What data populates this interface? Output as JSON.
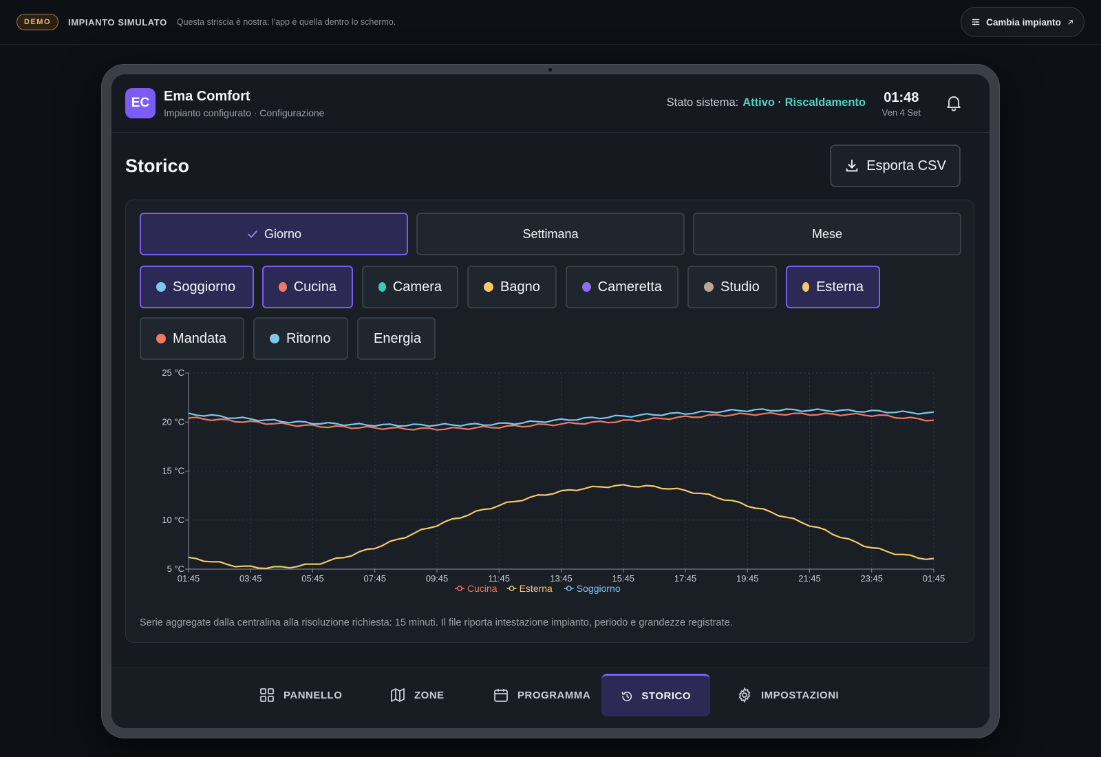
{
  "strip": {
    "badge": "DEMO",
    "title": "IMPIANTO SIMULATO",
    "note": "Questa striscia è nostra: l'app è quella dentro lo schermo.",
    "change_label": "Cambia impianto"
  },
  "header": {
    "logo": "EC",
    "app_name": "Ema Comfort",
    "subtitle": "Impianto configurato · Configurazione",
    "status_label": "Stato sistema:",
    "status_value": "Attivo · Riscaldamento",
    "time": "01:48",
    "date": "Ven 4 Set"
  },
  "page": {
    "title": "Storico",
    "export_label": "Esporta CSV"
  },
  "ranges": [
    {
      "label": "Giorno",
      "active": true
    },
    {
      "label": "Settimana",
      "active": false
    },
    {
      "label": "Mese",
      "active": false
    }
  ],
  "series_chips": [
    {
      "label": "Soggiorno",
      "color": "#7cc8ef",
      "active": true
    },
    {
      "label": "Cucina",
      "color": "#f07a5f",
      "active": true
    },
    {
      "label": "Camera",
      "color": "#3fc9b4",
      "active": false
    },
    {
      "label": "Bagno",
      "color": "#f5c96a",
      "active": false
    },
    {
      "label": "Cameretta",
      "color": "#8c6cf2",
      "active": false
    },
    {
      "label": "Studio",
      "color": "#bba78f",
      "active": false
    },
    {
      "label": "Esterna",
      "color": "#f5c96a",
      "active": true
    },
    {
      "label": "Mandata",
      "color": "#f07a5f",
      "active": false
    },
    {
      "label": "Ritorno",
      "color": "#7cc8ef",
      "active": false
    },
    {
      "label": "Energia",
      "color": "",
      "active": false
    }
  ],
  "chart_data": {
    "type": "line",
    "x": [
      "01:45",
      "03:45",
      "05:45",
      "07:45",
      "09:45",
      "11:45",
      "13:45",
      "15:45",
      "17:45",
      "19:45",
      "21:45",
      "23:45",
      "01:45"
    ],
    "x_ticks": [
      "01:45",
      "03:45",
      "05:45",
      "07:45",
      "09:45",
      "11:45",
      "13:45",
      "15:45",
      "17:45",
      "19:45",
      "21:45",
      "23:45",
      "01:45"
    ],
    "y_ticks": [
      "5 °C",
      "10 °C",
      "15 °C",
      "20 °C",
      "25 °C"
    ],
    "ylim": [
      5,
      25
    ],
    "grid": true,
    "legend_position": "bottom",
    "series": [
      {
        "name": "Cucina",
        "color": "#f07a5f",
        "values": [
          20.4,
          20.0,
          19.6,
          19.4,
          19.3,
          19.5,
          19.8,
          20.1,
          20.5,
          20.8,
          20.8,
          20.7,
          20.2
        ]
      },
      {
        "name": "Esterna",
        "color": "#f5c96a",
        "values": [
          6.1,
          5.2,
          5.5,
          7.2,
          9.5,
          11.5,
          12.9,
          13.5,
          13.0,
          11.5,
          9.5,
          7.2,
          6.0
        ]
      },
      {
        "name": "Soggiorno",
        "color": "#7cc8ef",
        "values": [
          20.8,
          20.3,
          19.9,
          19.7,
          19.7,
          19.8,
          20.2,
          20.6,
          20.9,
          21.2,
          21.2,
          21.1,
          20.9
        ]
      }
    ]
  },
  "caption": "Serie aggregate dalla centralina alla risoluzione richiesta: 15 minuti. Il file riporta intestazione impianto, periodo e grandezze registrate.",
  "nav": [
    {
      "label": "PANNELLO",
      "icon": "grid-icon",
      "active": false
    },
    {
      "label": "ZONE",
      "icon": "map-icon",
      "active": false
    },
    {
      "label": "PROGRAMMA",
      "icon": "calendar-icon",
      "active": false
    },
    {
      "label": "STORICO",
      "icon": "history-icon",
      "active": true
    },
    {
      "label": "IMPOSTAZIONI",
      "icon": "gear-icon",
      "active": false
    }
  ]
}
